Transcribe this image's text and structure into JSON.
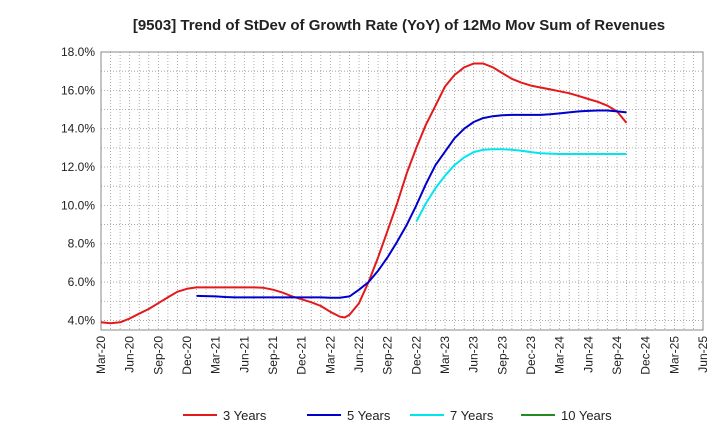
{
  "chart_data": {
    "type": "line",
    "title": "[9503]  Trend of StDev of Growth Rate (YoY) of 12Mo Mov Sum of Revenues",
    "xlabel": "",
    "ylabel": "",
    "x": [
      "Mar-20",
      "Jun-20",
      "Sep-20",
      "Dec-20",
      "Mar-21",
      "Jun-21",
      "Sep-21",
      "Dec-21",
      "Mar-22",
      "Jun-22",
      "Sep-22",
      "Dec-22",
      "Mar-23",
      "Jun-23",
      "Sep-23",
      "Dec-23",
      "Mar-24",
      "Jun-24",
      "Sep-24",
      "Dec-24",
      "Mar-25",
      "Jun-25"
    ],
    "ylim": [
      3.5,
      18.0
    ],
    "yticks": [
      4.0,
      6.0,
      8.0,
      10.0,
      12.0,
      14.0,
      16.0,
      18.0
    ],
    "ytick_labels": [
      "4.0%",
      "6.0%",
      "8.0%",
      "10.0%",
      "12.0%",
      "14.0%",
      "16.0%",
      "18.0%"
    ],
    "grid": true,
    "legend_position": "bottom",
    "series": [
      {
        "name": "3 Years",
        "color": "#e31a1c",
        "points": [
          [
            0,
            3.9
          ],
          [
            0.33,
            3.85
          ],
          [
            0.67,
            3.9
          ],
          [
            1,
            4.1
          ],
          [
            1.33,
            4.35
          ],
          [
            1.67,
            4.6
          ],
          [
            2,
            4.9
          ],
          [
            2.33,
            5.2
          ],
          [
            2.67,
            5.5
          ],
          [
            3,
            5.65
          ],
          [
            3.33,
            5.72
          ],
          [
            3.67,
            5.72
          ],
          [
            4,
            5.72
          ],
          [
            4.33,
            5.72
          ],
          [
            4.67,
            5.72
          ],
          [
            5,
            5.72
          ],
          [
            5.33,
            5.72
          ],
          [
            5.67,
            5.7
          ],
          [
            6,
            5.6
          ],
          [
            6.33,
            5.45
          ],
          [
            6.67,
            5.25
          ],
          [
            7,
            5.1
          ],
          [
            7.33,
            4.95
          ],
          [
            7.67,
            4.75
          ],
          [
            8,
            4.45
          ],
          [
            8.33,
            4.2
          ],
          [
            8.5,
            4.15
          ],
          [
            8.67,
            4.3
          ],
          [
            9,
            4.9
          ],
          [
            9.33,
            6.0
          ],
          [
            9.67,
            7.3
          ],
          [
            10,
            8.7
          ],
          [
            10.33,
            10.1
          ],
          [
            10.67,
            11.7
          ],
          [
            11,
            13.0
          ],
          [
            11.33,
            14.2
          ],
          [
            11.67,
            15.2
          ],
          [
            12,
            16.2
          ],
          [
            12.33,
            16.8
          ],
          [
            12.67,
            17.2
          ],
          [
            13,
            17.4
          ],
          [
            13.33,
            17.4
          ],
          [
            13.67,
            17.2
          ],
          [
            14,
            16.9
          ],
          [
            14.33,
            16.6
          ],
          [
            14.67,
            16.4
          ],
          [
            15,
            16.25
          ],
          [
            15.33,
            16.15
          ],
          [
            15.67,
            16.05
          ],
          [
            16,
            15.95
          ],
          [
            16.33,
            15.85
          ],
          [
            16.67,
            15.7
          ],
          [
            17,
            15.55
          ],
          [
            17.33,
            15.4
          ],
          [
            17.67,
            15.2
          ],
          [
            18,
            14.9
          ],
          [
            18.33,
            14.3
          ]
        ]
      },
      {
        "name": "5 Years",
        "color": "#0000cc",
        "points": [
          [
            3.33,
            5.28
          ],
          [
            3.67,
            5.27
          ],
          [
            4,
            5.25
          ],
          [
            4.33,
            5.22
          ],
          [
            4.67,
            5.2
          ],
          [
            5,
            5.2
          ],
          [
            5.33,
            5.2
          ],
          [
            5.67,
            5.2
          ],
          [
            6,
            5.2
          ],
          [
            6.33,
            5.2
          ],
          [
            6.67,
            5.2
          ],
          [
            7,
            5.2
          ],
          [
            7.33,
            5.2
          ],
          [
            7.67,
            5.2
          ],
          [
            8,
            5.18
          ],
          [
            8.33,
            5.18
          ],
          [
            8.67,
            5.25
          ],
          [
            9,
            5.6
          ],
          [
            9.33,
            6.0
          ],
          [
            9.67,
            6.6
          ],
          [
            10,
            7.3
          ],
          [
            10.33,
            8.1
          ],
          [
            10.67,
            9.0
          ],
          [
            11,
            10.0
          ],
          [
            11.33,
            11.1
          ],
          [
            11.67,
            12.1
          ],
          [
            12,
            12.8
          ],
          [
            12.33,
            13.5
          ],
          [
            12.67,
            14.0
          ],
          [
            13,
            14.35
          ],
          [
            13.33,
            14.55
          ],
          [
            13.67,
            14.65
          ],
          [
            14,
            14.7
          ],
          [
            14.33,
            14.72
          ],
          [
            14.67,
            14.72
          ],
          [
            15,
            14.72
          ],
          [
            15.33,
            14.72
          ],
          [
            15.67,
            14.75
          ],
          [
            16,
            14.8
          ],
          [
            16.33,
            14.85
          ],
          [
            16.67,
            14.9
          ],
          [
            17,
            14.93
          ],
          [
            17.33,
            14.95
          ],
          [
            17.67,
            14.95
          ],
          [
            18,
            14.9
          ],
          [
            18.33,
            14.85
          ]
        ]
      },
      {
        "name": "7 Years",
        "color": "#00e5ee",
        "points": [
          [
            11,
            9.15
          ],
          [
            11.33,
            10.1
          ],
          [
            11.67,
            10.9
          ],
          [
            12,
            11.55
          ],
          [
            12.33,
            12.1
          ],
          [
            12.67,
            12.5
          ],
          [
            13,
            12.78
          ],
          [
            13.33,
            12.9
          ],
          [
            13.67,
            12.93
          ],
          [
            14,
            12.93
          ],
          [
            14.33,
            12.9
          ],
          [
            14.67,
            12.85
          ],
          [
            15,
            12.78
          ],
          [
            15.33,
            12.72
          ],
          [
            15.67,
            12.7
          ],
          [
            16,
            12.68
          ],
          [
            16.33,
            12.68
          ],
          [
            16.67,
            12.68
          ],
          [
            17,
            12.68
          ],
          [
            17.33,
            12.68
          ],
          [
            17.67,
            12.68
          ],
          [
            18,
            12.68
          ],
          [
            18.33,
            12.68
          ]
        ]
      },
      {
        "name": "10 Years",
        "color": "#228b22",
        "points": []
      }
    ]
  }
}
